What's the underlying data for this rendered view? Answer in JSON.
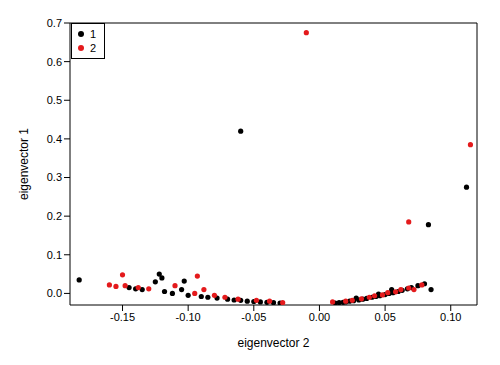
{
  "chart_data": {
    "type": "scatter",
    "x_label": "eigenvector 2",
    "y_label": "eigenvector 1",
    "xlim": [
      -0.19,
      0.12
    ],
    "ylim": [
      -0.03,
      0.7
    ],
    "xticks": [
      -0.15,
      {
        "value": -0.1,
        "label": "-0.10"
      },
      -0.05,
      {
        "value": 0,
        "label": "0.00"
      },
      0.05,
      {
        "value": 0.1,
        "label": "0.10"
      }
    ],
    "yticks": [
      {
        "value": 0,
        "label": "0.0"
      },
      0.1,
      0.2,
      0.3,
      0.4,
      0.5,
      0.6,
      0.7
    ],
    "grid": false,
    "legend": "top-left",
    "series": [
      {
        "name": "1",
        "color": "#000000",
        "marker": "circle",
        "x": [
          -0.06,
          0.112,
          0.083,
          -0.183,
          -0.122,
          -0.12,
          -0.103,
          -0.145,
          -0.14,
          -0.135,
          -0.125,
          -0.118,
          -0.112,
          -0.105,
          -0.1,
          -0.09,
          -0.085,
          -0.078,
          -0.07,
          -0.065,
          -0.06,
          -0.055,
          -0.05,
          -0.045,
          -0.04,
          -0.035,
          -0.03,
          0.012,
          0.015,
          0.018,
          0.02,
          0.023,
          0.026,
          0.03,
          0.033,
          0.036,
          0.04,
          0.043,
          0.046,
          0.05,
          0.053,
          0.056,
          0.06,
          0.063,
          0.067,
          0.07,
          0.075,
          0.08,
          0.085,
          0.028,
          0.045,
          0.055
        ],
        "values": [
          0.42,
          0.275,
          0.178,
          0.035,
          0.05,
          0.04,
          0.032,
          0.015,
          0.012,
          0.01,
          0.03,
          0.005,
          0.0,
          0.01,
          -0.005,
          -0.008,
          -0.01,
          -0.012,
          -0.015,
          -0.017,
          -0.018,
          -0.02,
          -0.021,
          -0.022,
          -0.023,
          -0.024,
          -0.025,
          -0.025,
          -0.024,
          -0.023,
          -0.022,
          -0.02,
          -0.019,
          -0.017,
          -0.015,
          -0.013,
          -0.01,
          -0.008,
          -0.006,
          -0.003,
          0.0,
          0.002,
          0.005,
          0.008,
          0.012,
          0.015,
          0.02,
          0.025,
          0.01,
          -0.012,
          -0.002,
          0.01
        ]
      },
      {
        "name": "2",
        "color": "#e41a1c",
        "marker": "circle",
        "x": [
          -0.01,
          0.115,
          0.068,
          -0.093,
          -0.15,
          -0.16,
          -0.155,
          -0.148,
          -0.138,
          -0.13,
          -0.11,
          -0.095,
          -0.088,
          -0.08,
          -0.072,
          -0.062,
          -0.048,
          -0.038,
          -0.028,
          0.01,
          0.02,
          0.025,
          0.032,
          0.038,
          0.042,
          0.048,
          0.052,
          0.058,
          0.062,
          0.068,
          0.072,
          0.078
        ],
        "values": [
          0.675,
          0.385,
          0.185,
          0.045,
          0.048,
          0.022,
          0.018,
          0.02,
          0.015,
          0.012,
          0.02,
          0.0,
          0.01,
          -0.005,
          -0.01,
          -0.015,
          -0.018,
          -0.02,
          -0.024,
          -0.022,
          -0.02,
          -0.018,
          -0.014,
          -0.01,
          -0.006,
          -0.004,
          0.002,
          0.004,
          0.01,
          0.014,
          0.01,
          0.022
        ]
      }
    ]
  }
}
